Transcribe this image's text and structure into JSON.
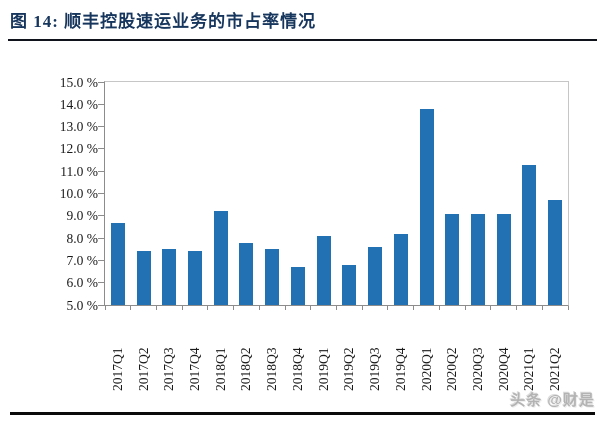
{
  "header": {
    "figure_label": "图 14:",
    "title": "顺丰控股速运业务的市占率情况"
  },
  "watermark": "头条 @财是",
  "colors": {
    "bar": "#2271B3",
    "title": "#17365D",
    "axis": "#8C8C8C",
    "plot_border": "#C6C6C6",
    "tick_label": "#1A1A1A",
    "watermark": "#B3B3B3",
    "rule": "#0A0A0A"
  },
  "chart_data": {
    "type": "bar",
    "title": "顺丰控股速运业务的市占率情况",
    "xlabel": "",
    "ylabel": "",
    "categories": [
      "2017Q1",
      "2017Q2",
      "2017Q3",
      "2017Q4",
      "2018Q1",
      "2018Q2",
      "2018Q3",
      "2018Q4",
      "2019Q1",
      "2019Q2",
      "2019Q3",
      "2019Q4",
      "2020Q1",
      "2020Q2",
      "2020Q3",
      "2020Q4",
      "2021Q1",
      "2021Q2"
    ],
    "values": [
      8.7,
      7.4,
      7.5,
      7.4,
      9.2,
      7.8,
      7.5,
      6.7,
      8.1,
      6.8,
      7.6,
      8.2,
      13.8,
      9.1,
      9.1,
      9.1,
      11.3,
      9.7
    ],
    "ylim": [
      5,
      15
    ],
    "ytick_step": 1,
    "ytick_labels": [
      "15.0 %",
      "14.0 %",
      "13.0 %",
      "12.0 %",
      "11.0 %",
      "10.0 %",
      "9.0 %",
      "8.0 %",
      "7.0 %",
      "6.0 %",
      "5.0 %"
    ],
    "grid": false,
    "legend_position": "none",
    "bar_color": "#2271B3"
  }
}
